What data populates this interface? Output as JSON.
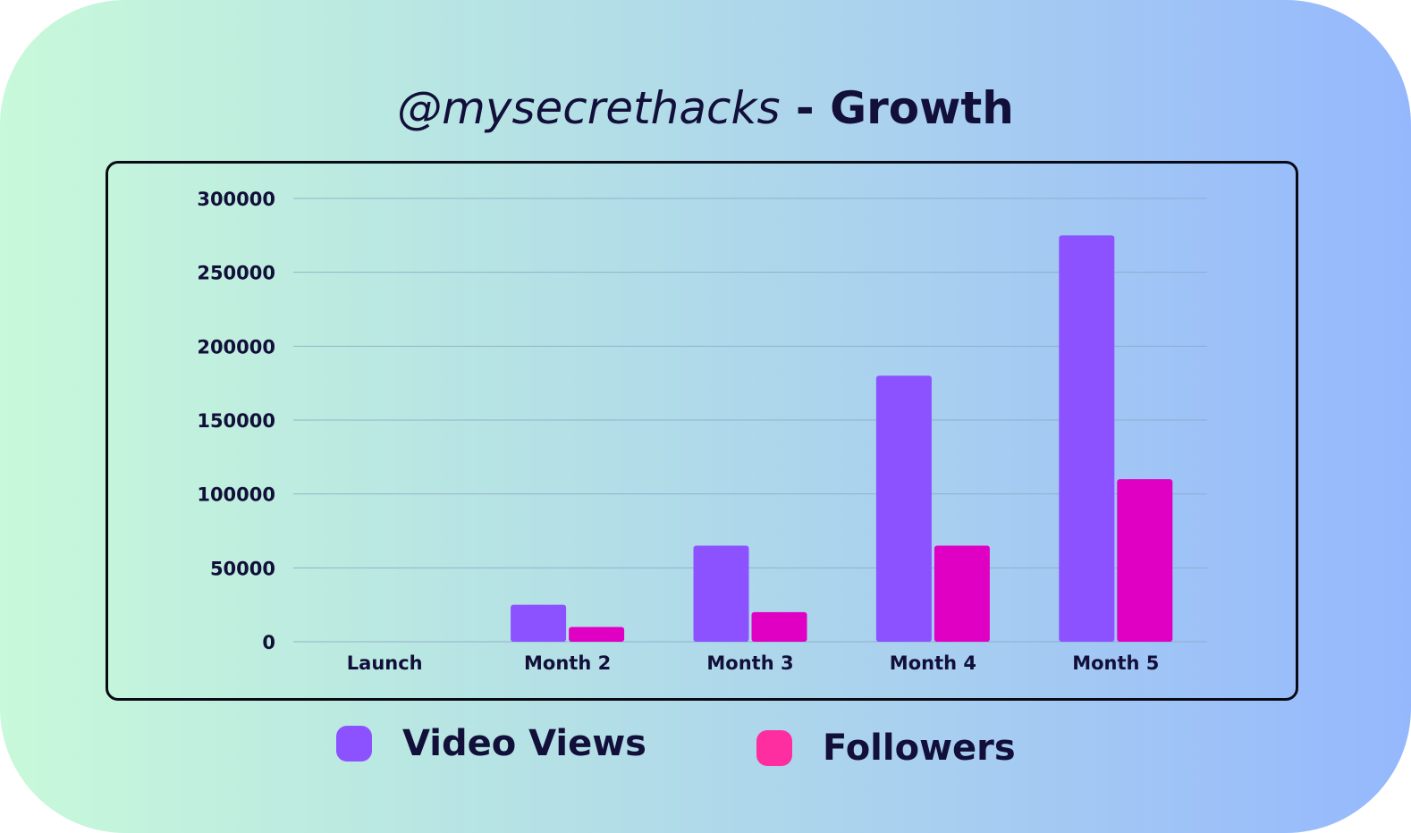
{
  "title": {
    "handle": "@mysecrethacks",
    "separator": " - ",
    "word": "Growth"
  },
  "colors": {
    "video_views": "#8c52ff",
    "followers": "#e000c4",
    "followers_legend": "#ff2ea0",
    "gridline": "#8aa7c4",
    "text": "#120f3a"
  },
  "legend": {
    "items": [
      {
        "label": "Video Views"
      },
      {
        "label": "Followers"
      }
    ]
  },
  "chart_data": {
    "type": "bar",
    "categories": [
      "Launch",
      "Month 2",
      "Month 3",
      "Month 4",
      "Month 5"
    ],
    "series": [
      {
        "name": "Video Views",
        "values": [
          0,
          25000,
          65000,
          180000,
          275000
        ]
      },
      {
        "name": "Followers",
        "values": [
          0,
          10000,
          20000,
          65000,
          110000
        ]
      }
    ],
    "ylim": [
      0,
      300000
    ],
    "yticks": [
      "0",
      "50000",
      "100000",
      "150000",
      "200000",
      "250000",
      "300000"
    ],
    "grid": true,
    "legend_position": "bottom"
  }
}
